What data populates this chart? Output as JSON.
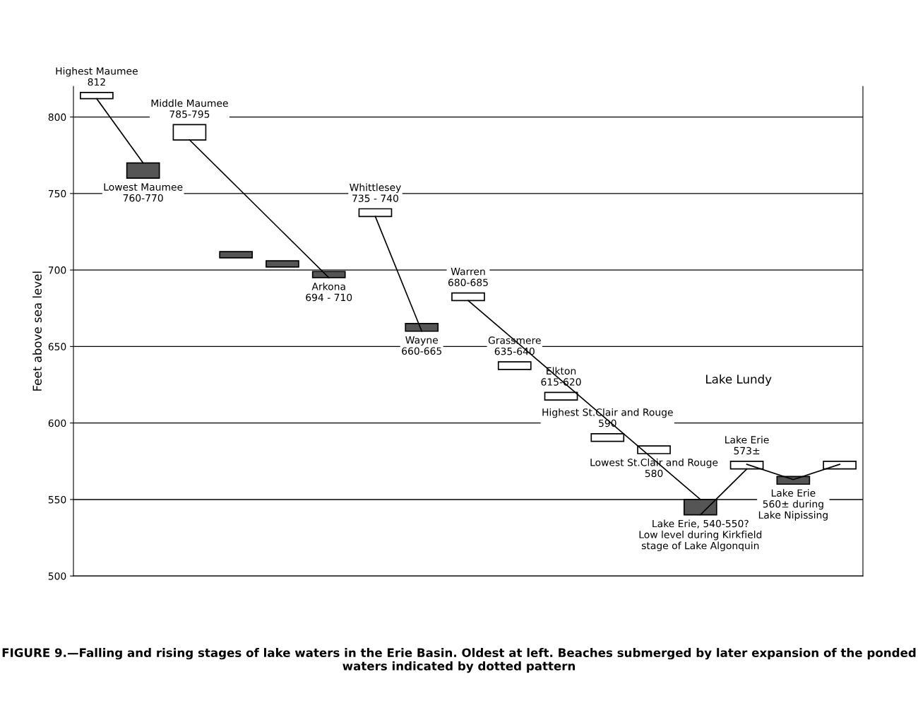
{
  "chart_data": {
    "type": "bar",
    "ylabel": "Feet above sea level",
    "categories": [
      null,
      null,
      null,
      null,
      null,
      null,
      null,
      null,
      null,
      null,
      null,
      null,
      null,
      null,
      null,
      null,
      null
    ],
    "ylim": [
      500,
      820
    ],
    "yticks": [
      500,
      550,
      600,
      650,
      700,
      750,
      800
    ],
    "grid": "y",
    "series": [
      {
        "base": [
          812,
          760,
          785,
          708,
          702,
          695,
          735,
          660,
          680,
          635,
          615,
          588,
          580,
          540,
          570,
          560,
          570
        ],
        "values": [
          4,
          10,
          10,
          4,
          4,
          4,
          5,
          5,
          5,
          5,
          5,
          5,
          5,
          10,
          5,
          5,
          5
        ],
        "colors": [
          "#ffffff",
          "#555555",
          "#ffffff",
          "#555555",
          "#555555",
          "#555555",
          "#ffffff",
          "#555555",
          "#ffffff",
          "#ffffff",
          "#ffffff",
          "#ffffff",
          "#ffffff",
          "#555555",
          "#ffffff",
          "#555555",
          "#ffffff"
        ],
        "value_labels": [
          "Highest Maumee\n812",
          "Lowest Maumee\n760-770",
          "Middle Maumee\n785-795",
          null,
          null,
          "Arkona\n694 - 710",
          "Whittlesey\n735 - 740",
          "Wayne\n660-665",
          "Warren\n680-685",
          "Grassmere\n635-640",
          "Elkton\n615-620",
          "Highest St.Clair and Rouge\n590",
          "Lowest St.Clair and Rouge\n580",
          "Lake Erie, 540-550?\nLow level during Kirkfield\nstage of Lake Algonquin",
          "Lake Erie\n573±",
          "Lake Erie\n560± during\nLake Nipissing",
          null
        ]
      },
      {
        "type": "line",
        "color": "#000000",
        "values": [
          812,
          770,
          null,
          null,
          null,
          null,
          null,
          null,
          null,
          null,
          null,
          null,
          null,
          null,
          null,
          null,
          null
        ]
      },
      {
        "type": "line",
        "color": "#000000",
        "values": [
          null,
          null,
          785,
          755,
          725,
          695,
          null,
          null,
          null,
          null,
          null,
          null,
          null,
          null,
          null,
          null,
          null
        ]
      },
      {
        "type": "line",
        "color": "#000000",
        "values": [
          null,
          null,
          null,
          null,
          null,
          null,
          735,
          660,
          null,
          null,
          null,
          null,
          null,
          null,
          null,
          null,
          null
        ]
      },
      {
        "type": "line",
        "color": "#000000",
        "values": [
          null,
          null,
          null,
          null,
          null,
          null,
          null,
          null,
          680,
          654,
          628,
          602,
          576,
          550,
          null,
          null,
          null
        ]
      },
      {
        "type": "line",
        "color": "#000000",
        "values": [
          null,
          null,
          null,
          null,
          null,
          null,
          null,
          null,
          null,
          null,
          null,
          null,
          null,
          540,
          570,
          null,
          null
        ]
      },
      {
        "type": "line",
        "color": "#000000",
        "values": [
          null,
          null,
          null,
          null,
          null,
          null,
          null,
          null,
          null,
          null,
          null,
          null,
          null,
          null,
          573,
          563,
          573
        ]
      }
    ],
    "annotations": [
      "Lake Lundy",
      "FIGURE 9.—Falling and rising stages of lake waters in the Erie Basin. Oldest at left. Beaches submerged by later expansion of the ponded waters indicated by dotted pattern"
    ]
  }
}
